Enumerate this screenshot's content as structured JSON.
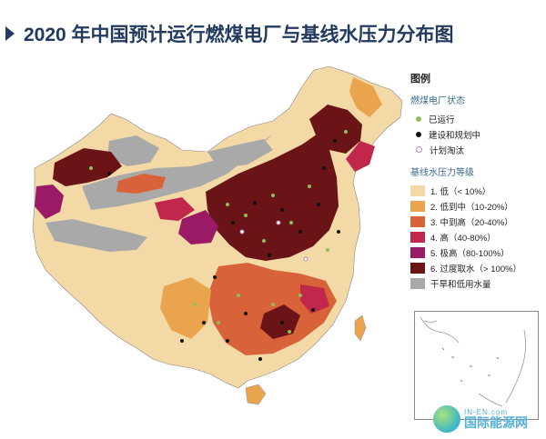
{
  "title": "2020 年中国预计运行燃煤电厂与基线水压力分布图",
  "legend": {
    "title": "图例",
    "plant_status_title": "燃煤电厂状态",
    "plant_status": [
      {
        "label": "已运行",
        "color": "#8fbf5a"
      },
      {
        "label": "建设和规划中",
        "color": "#111111"
      },
      {
        "label": "计划淘汰",
        "color": "#d7b9d6"
      }
    ],
    "water_stress_title": "基线水压力等级",
    "water_stress": [
      {
        "label": "1. 低（< 10%）",
        "color": "#f3d9a6"
      },
      {
        "label": "2. 低到中（10-20%）",
        "color": "#e9a44d"
      },
      {
        "label": "3. 中到高（20-40%）",
        "color": "#d8633a"
      },
      {
        "label": "4. 高（40-80%）",
        "color": "#c0274b"
      },
      {
        "label": "5. 极高（80-100%）",
        "color": "#9a1a65"
      },
      {
        "label": "6. 过度取水（> 100%）",
        "color": "#6a1418"
      },
      {
        "label": "干旱和低用水量",
        "color": "#a9a9a9"
      }
    ]
  },
  "watermark": {
    "text_en": "IN-EN.com",
    "text_cn": "国际能源网"
  }
}
